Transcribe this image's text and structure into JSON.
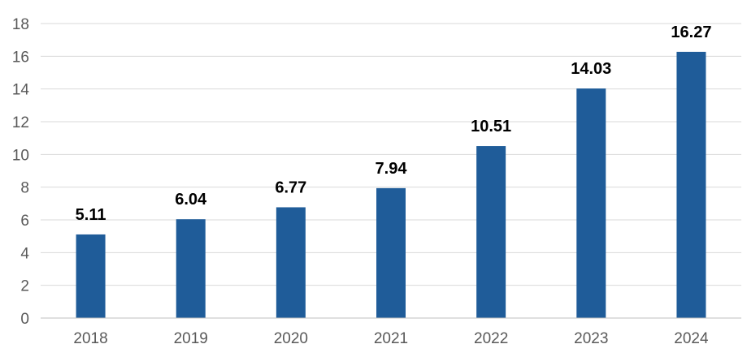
{
  "chart_data": {
    "type": "bar",
    "categories": [
      "2018",
      "2019",
      "2020",
      "2021",
      "2022",
      "2023",
      "2024"
    ],
    "values": [
      5.11,
      6.04,
      6.77,
      7.94,
      10.51,
      14.03,
      16.27
    ],
    "data_labels": [
      "5.11",
      "6.04",
      "6.77",
      "7.94",
      "10.51",
      "14.03",
      "16.27"
    ],
    "ylim": [
      0,
      18
    ],
    "yticks": [
      "0",
      "2",
      "4",
      "6",
      "8",
      "10",
      "12",
      "14",
      "16",
      "18"
    ],
    "ytick_values": [
      0,
      2,
      4,
      6,
      8,
      10,
      12,
      14,
      16,
      18
    ],
    "grid": true,
    "legend": "none",
    "bar_color": "#1f5c99",
    "title": "",
    "xlabel": "",
    "ylabel": ""
  }
}
